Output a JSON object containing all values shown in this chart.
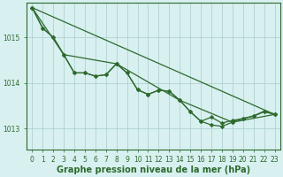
{
  "background_color": "#d8f0f0",
  "grid_color": "#aacccc",
  "line_color": "#2d6a2d",
  "marker_color": "#2d6a2d",
  "xlabel": "Graphe pression niveau de la mer (hPa)",
  "xlabel_fontsize": 7.0,
  "tick_fontsize": 5.5,
  "yticks": [
    1013,
    1014,
    1015
  ],
  "xticks": [
    0,
    1,
    2,
    3,
    4,
    5,
    6,
    7,
    8,
    9,
    10,
    11,
    12,
    13,
    14,
    15,
    16,
    17,
    18,
    19,
    20,
    21,
    22,
    23
  ],
  "xlim": [
    -0.5,
    23.5
  ],
  "ylim": [
    1012.55,
    1015.75
  ],
  "lines": [
    {
      "x": [
        0,
        1,
        2,
        3,
        4,
        5,
        6,
        7,
        8,
        9,
        10,
        11,
        12,
        13,
        14,
        15,
        16,
        17,
        18,
        19,
        20,
        21,
        22,
        23
      ],
      "y": [
        1015.65,
        1015.2,
        1015.0,
        1014.62,
        1014.22,
        1014.22,
        1014.15,
        1014.18,
        1014.42,
        1014.22,
        1013.85,
        1013.75,
        1013.84,
        1013.82,
        1013.62,
        1013.37,
        1013.16,
        1013.08,
        1013.05,
        1013.14,
        1013.22,
        1013.27,
        1013.37,
        1013.31
      ],
      "marker": "D",
      "markersize": 2.2,
      "linewidth": 0.9
    },
    {
      "x": [
        0,
        1,
        2,
        3,
        4,
        5,
        6,
        7,
        8,
        9,
        10,
        11,
        12,
        13,
        14,
        15,
        16,
        17,
        18,
        19,
        20,
        21,
        22,
        23
      ],
      "y": [
        1015.65,
        1015.2,
        1015.0,
        1014.62,
        1014.22,
        1014.22,
        1014.15,
        1014.18,
        1014.42,
        1014.22,
        1013.85,
        1013.75,
        1013.84,
        1013.82,
        1013.62,
        1013.37,
        1013.16,
        1013.25,
        1013.12,
        1013.18,
        1013.22,
        1013.28,
        1013.38,
        1013.32
      ],
      "marker": "D",
      "markersize": 2.2,
      "linewidth": 0.9
    },
    {
      "x": [
        0,
        23
      ],
      "y": [
        1015.65,
        1013.31
      ],
      "marker": null,
      "markersize": 0,
      "linewidth": 0.9
    },
    {
      "x": [
        0,
        3,
        8,
        14,
        19,
        23
      ],
      "y": [
        1015.65,
        1014.62,
        1014.42,
        1013.62,
        1013.14,
        1013.31
      ],
      "marker": "D",
      "markersize": 2.2,
      "linewidth": 0.9
    }
  ]
}
